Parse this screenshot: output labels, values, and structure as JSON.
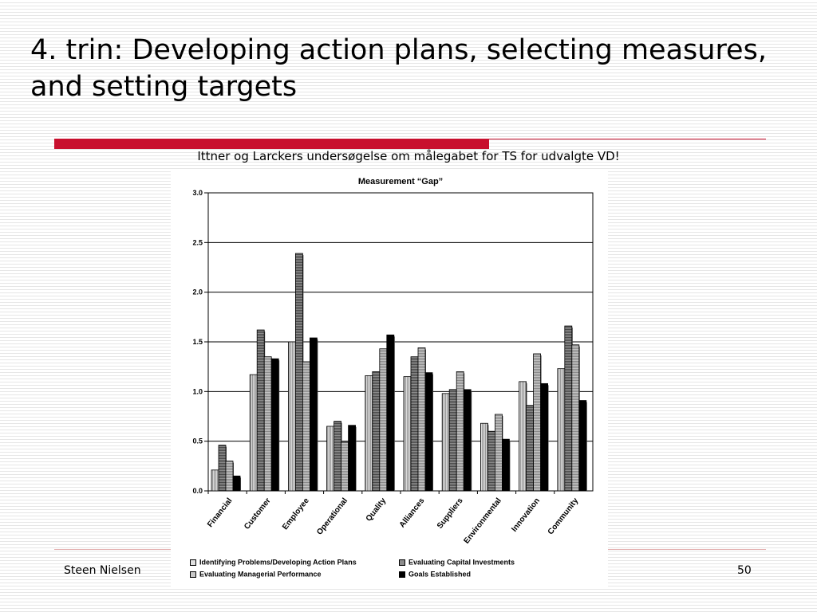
{
  "slide": {
    "title": "4. trin: Developing action plans, selecting measures, and setting targets",
    "subtitle": "Ittner og Larckers undersøgelse om målegabet for TS for udvalgte VD!",
    "footer_author": "Steen Nielsen",
    "page_number": "50",
    "accent_color": "#c8102e"
  },
  "chart_data": {
    "type": "bar",
    "title": "Measurement “Gap”",
    "xlabel": "",
    "ylabel": "",
    "ylim": [
      0,
      3.0
    ],
    "yticks": [
      "0.0",
      "0.5",
      "1.0",
      "1.5",
      "2.0",
      "2.5",
      "3.0"
    ],
    "grid": true,
    "legend_position": "bottom",
    "categories": [
      "Financial",
      "Customer",
      "Employee",
      "Operational",
      "Quality",
      "Alliances",
      "Suppliers",
      "Environmental",
      "Innovation",
      "Community"
    ],
    "series": [
      {
        "name": "Identifying Problems/Developing Action Plans",
        "color": "#d9d9d9",
        "values": [
          0.21,
          1.17,
          1.5,
          0.65,
          1.16,
          1.15,
          0.98,
          0.68,
          1.1,
          1.23
        ]
      },
      {
        "name": "Evaluating Capital Investments",
        "color": "#8c8c8c",
        "values": [
          0.46,
          1.62,
          2.39,
          0.7,
          1.2,
          1.35,
          1.02,
          0.6,
          0.86,
          1.66
        ]
      },
      {
        "name": "Evaluating Managerial Performance",
        "color": "#c4c4c4",
        "values": [
          0.3,
          1.35,
          1.3,
          0.49,
          1.43,
          1.44,
          1.2,
          0.77,
          1.38,
          1.47
        ]
      },
      {
        "name": "Goals Established",
        "color": "#000000",
        "values": [
          0.15,
          1.33,
          1.54,
          0.66,
          1.57,
          1.19,
          1.02,
          0.52,
          1.08,
          0.91
        ]
      }
    ]
  }
}
